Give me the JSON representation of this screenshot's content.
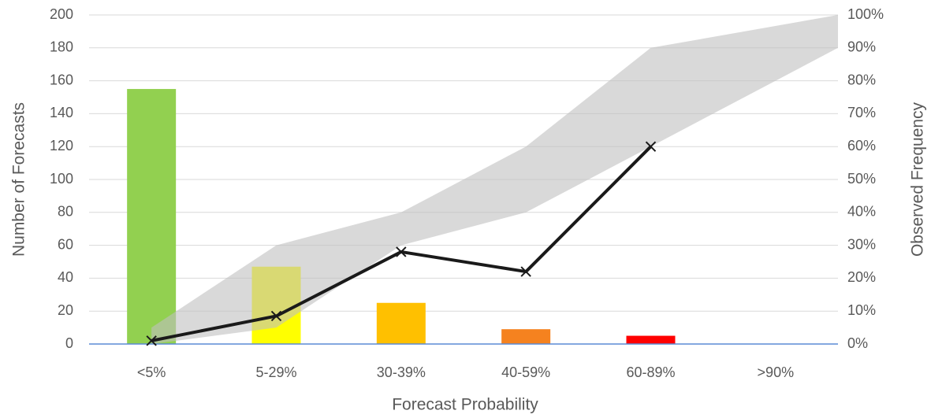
{
  "chart_data": {
    "type": "bar",
    "categories": [
      "<5%",
      "5-29%",
      "30-39%",
      "40-59%",
      "60-89%",
      ">90%"
    ],
    "values": [
      155,
      47,
      25,
      9,
      5,
      0
    ],
    "colors": [
      "#92d050",
      "#ffff00",
      "#ffc000",
      "#f5821f",
      "#ff0000",
      "#a6a6a6"
    ],
    "series": [
      {
        "type": "line",
        "axis": "y2",
        "color": "#1a1a1a",
        "values": [
          1,
          8.5,
          28,
          22,
          60,
          null
        ]
      }
    ],
    "band": {
      "color": "#bfbfbf",
      "lower": [
        0,
        5,
        30,
        40,
        60,
        90
      ],
      "upper": [
        5,
        30,
        40,
        60,
        90,
        100
      ]
    },
    "xlabel": "Forecast Probability",
    "ylabel": "Number of Forecasts",
    "y2label": "Observed Frequency",
    "ylim": [
      0,
      200
    ],
    "yticks": [
      0,
      20,
      40,
      60,
      80,
      100,
      120,
      140,
      160,
      180,
      200
    ],
    "y2lim": [
      0,
      100
    ],
    "y2ticks": [
      {
        "value": 0,
        "label": "0%"
      },
      {
        "value": 10,
        "label": "10%"
      },
      {
        "value": 20,
        "label": "20%"
      },
      {
        "value": 30,
        "label": "30%"
      },
      {
        "value": 40,
        "label": "40%"
      },
      {
        "value": 50,
        "label": "50%"
      },
      {
        "value": 60,
        "label": "60%"
      },
      {
        "value": 70,
        "label": "70%"
      },
      {
        "value": 80,
        "label": "80%"
      },
      {
        "value": 90,
        "label": "90%"
      },
      {
        "value": 100,
        "label": "100%"
      }
    ],
    "grid": true
  }
}
